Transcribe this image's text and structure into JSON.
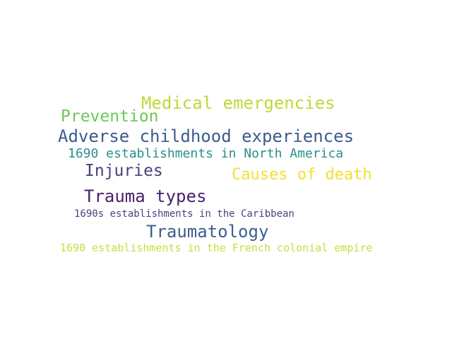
{
  "cloud": {
    "words": {
      "medical": {
        "text": "Medical emergencies",
        "color": "#c0d73a"
      },
      "prevention": {
        "text": "Prevention",
        "color": "#6cc85a"
      },
      "adverse": {
        "text": "Adverse childhood experiences",
        "color": "#3b5c8d"
      },
      "north_america": {
        "text": "1690 establishments in North America",
        "color": "#2a8f8a"
      },
      "injuries": {
        "text": "Injuries",
        "color": "#4b3f7d"
      },
      "causes": {
        "text": "Causes of death",
        "color": "#f2e030"
      },
      "trauma_types": {
        "text": "Trauma types",
        "color": "#4a1f6b"
      },
      "caribbean": {
        "text": "1690s establishments in the Caribbean",
        "color": "#46437d"
      },
      "traumatology": {
        "text": "Traumatology",
        "color": "#3a5f8f"
      },
      "french": {
        "text": "1690 establishments in the French colonial empire",
        "color": "#c9dc3c"
      }
    }
  }
}
